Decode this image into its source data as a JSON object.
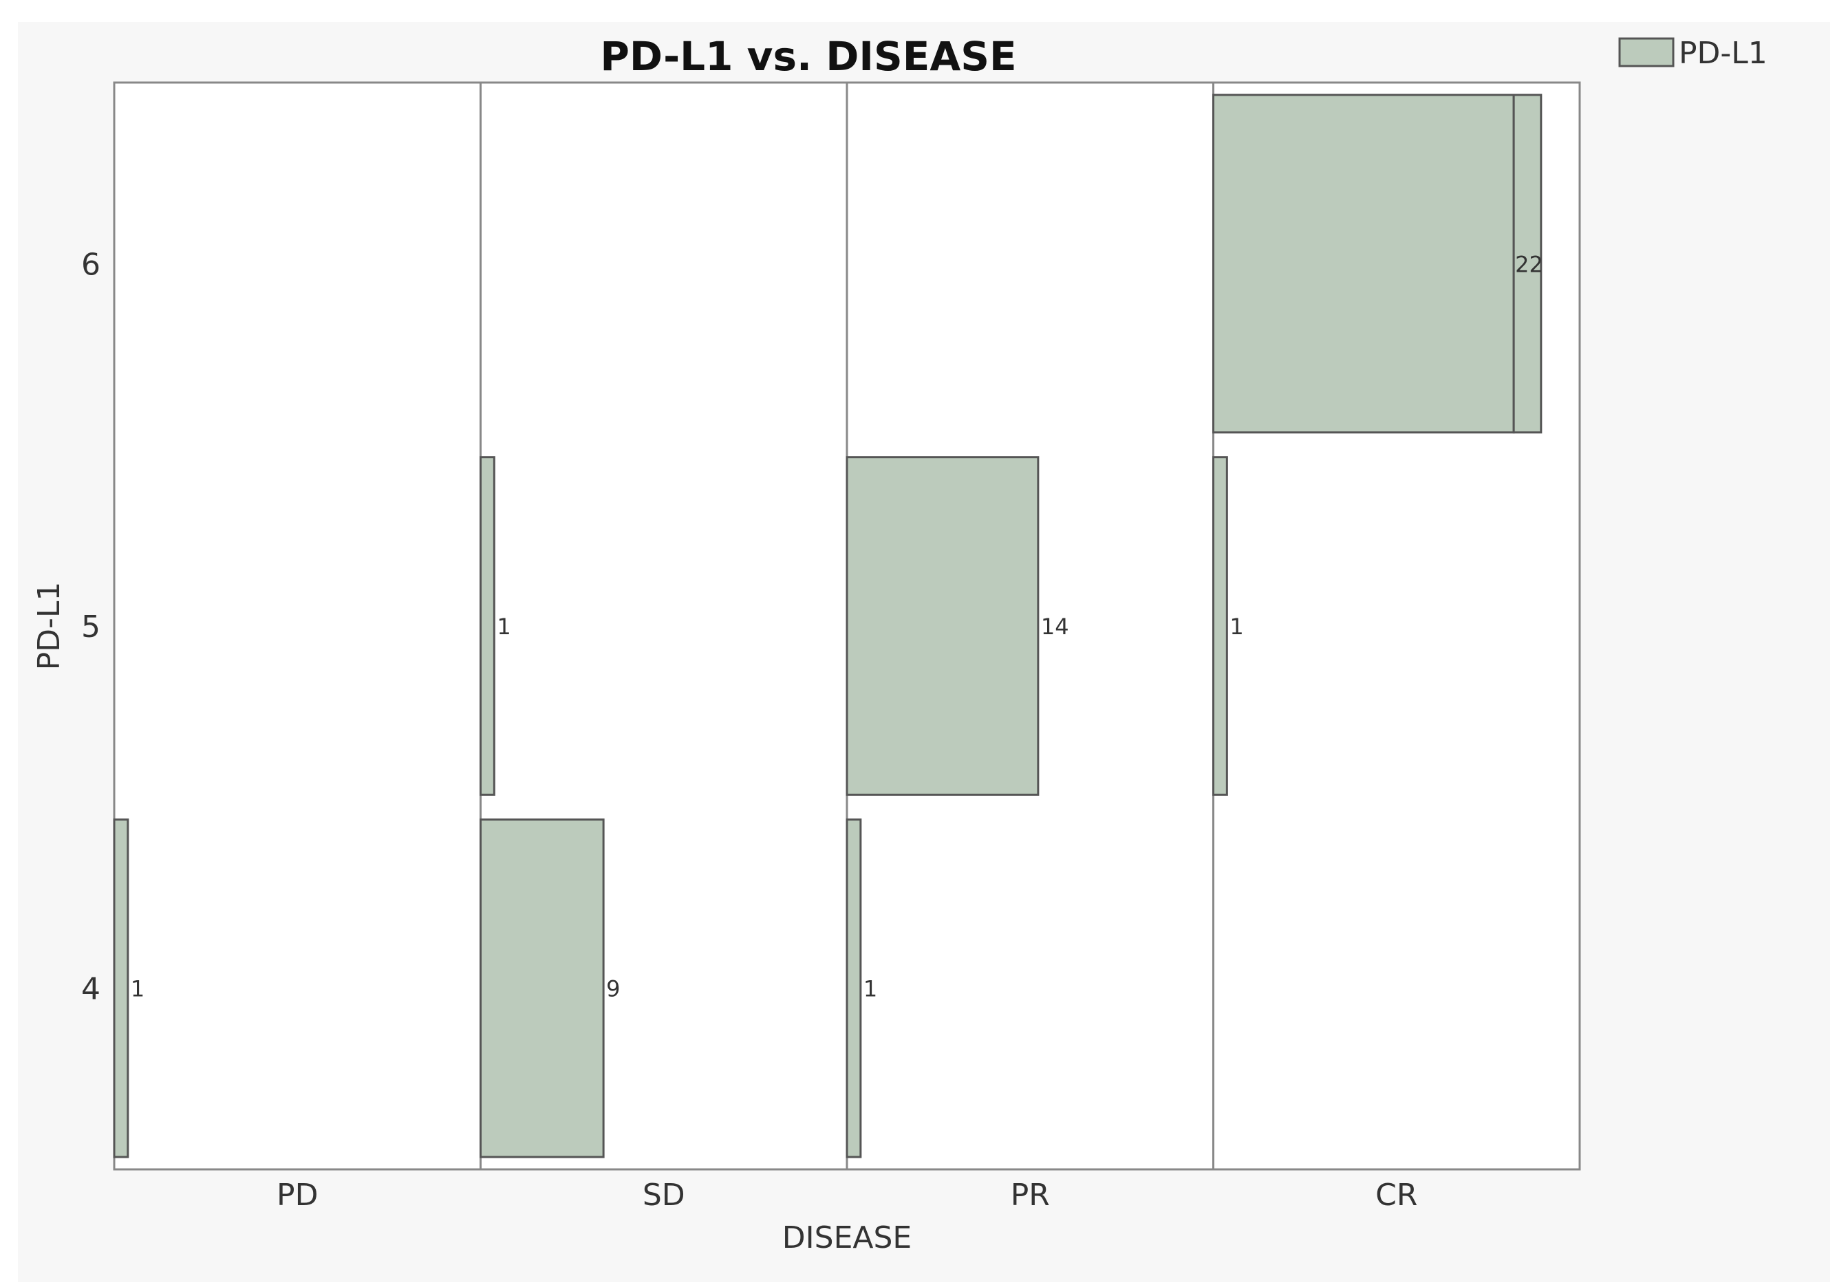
{
  "chart_data": {
    "type": "mosaic",
    "title": "PD-L1 vs. DISEASE",
    "xlabel": "DISEASE",
    "ylabel": "PD-L1",
    "x_categories": [
      "PD",
      "SD",
      "PR",
      "CR"
    ],
    "y_ticks": [
      "4",
      "5",
      "6"
    ],
    "ylim": [
      3.5,
      6.5
    ],
    "legend": {
      "label": "PD-L1",
      "placement": "top-right"
    },
    "bar_color": "#bccbbc",
    "bar_stroke": "#555555",
    "series": [
      {
        "name": "PD",
        "counts": {
          "4": 1
        }
      },
      {
        "name": "SD",
        "counts": {
          "4": 9,
          "5": 1
        }
      },
      {
        "name": "PR",
        "counts": {
          "4": 1,
          "5": 14
        }
      },
      {
        "name": "CR",
        "counts": {
          "5": 1,
          "6": 22
        }
      }
    ],
    "extra_bar": {
      "category": "CR",
      "level": "6",
      "count": 2
    },
    "max_count": 22
  }
}
